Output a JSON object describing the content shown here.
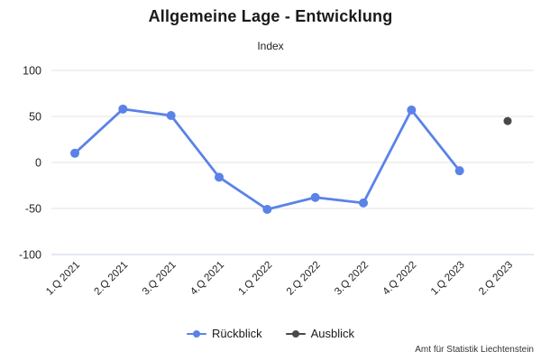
{
  "header": {
    "title": "Allgemeine Lage - Entwicklung",
    "subtitle": "Index"
  },
  "footer": {
    "source": "Amt für Statistik Liechtenstein"
  },
  "legend": {
    "items": [
      {
        "label": "Rückblick",
        "color": "#5b82e8"
      },
      {
        "label": "Ausblick",
        "color": "#494949"
      }
    ]
  },
  "chart_data": {
    "type": "line",
    "title": "Allgemeine Lage - Entwicklung",
    "subtitle": "Index",
    "categories": [
      "1.Q 2021",
      "2.Q 2021",
      "3.Q 2021",
      "4.Q 2021",
      "1.Q 2022",
      "2.Q 2022",
      "3.Q 2022",
      "4.Q 2022",
      "1.Q 2023",
      "2.Q 2023"
    ],
    "series": [
      {
        "name": "Rückblick",
        "color": "#5b82e8",
        "marker_radius": 5,
        "values": [
          10,
          58,
          51,
          -16,
          -51,
          -38,
          -44,
          57,
          -9,
          null
        ]
      },
      {
        "name": "Ausblick",
        "color": "#494949",
        "marker_radius": 4.5,
        "values": [
          null,
          null,
          null,
          null,
          null,
          null,
          null,
          null,
          null,
          45
        ]
      }
    ],
    "ylim": [
      -100,
      100
    ],
    "yticks": [
      100,
      50,
      0,
      -50,
      -100
    ],
    "grid": true,
    "grid_color": "#e3e3e3",
    "baseline_color": "#c9d2e8",
    "tick_label_color": "#222222",
    "legend_position": "bottom"
  }
}
